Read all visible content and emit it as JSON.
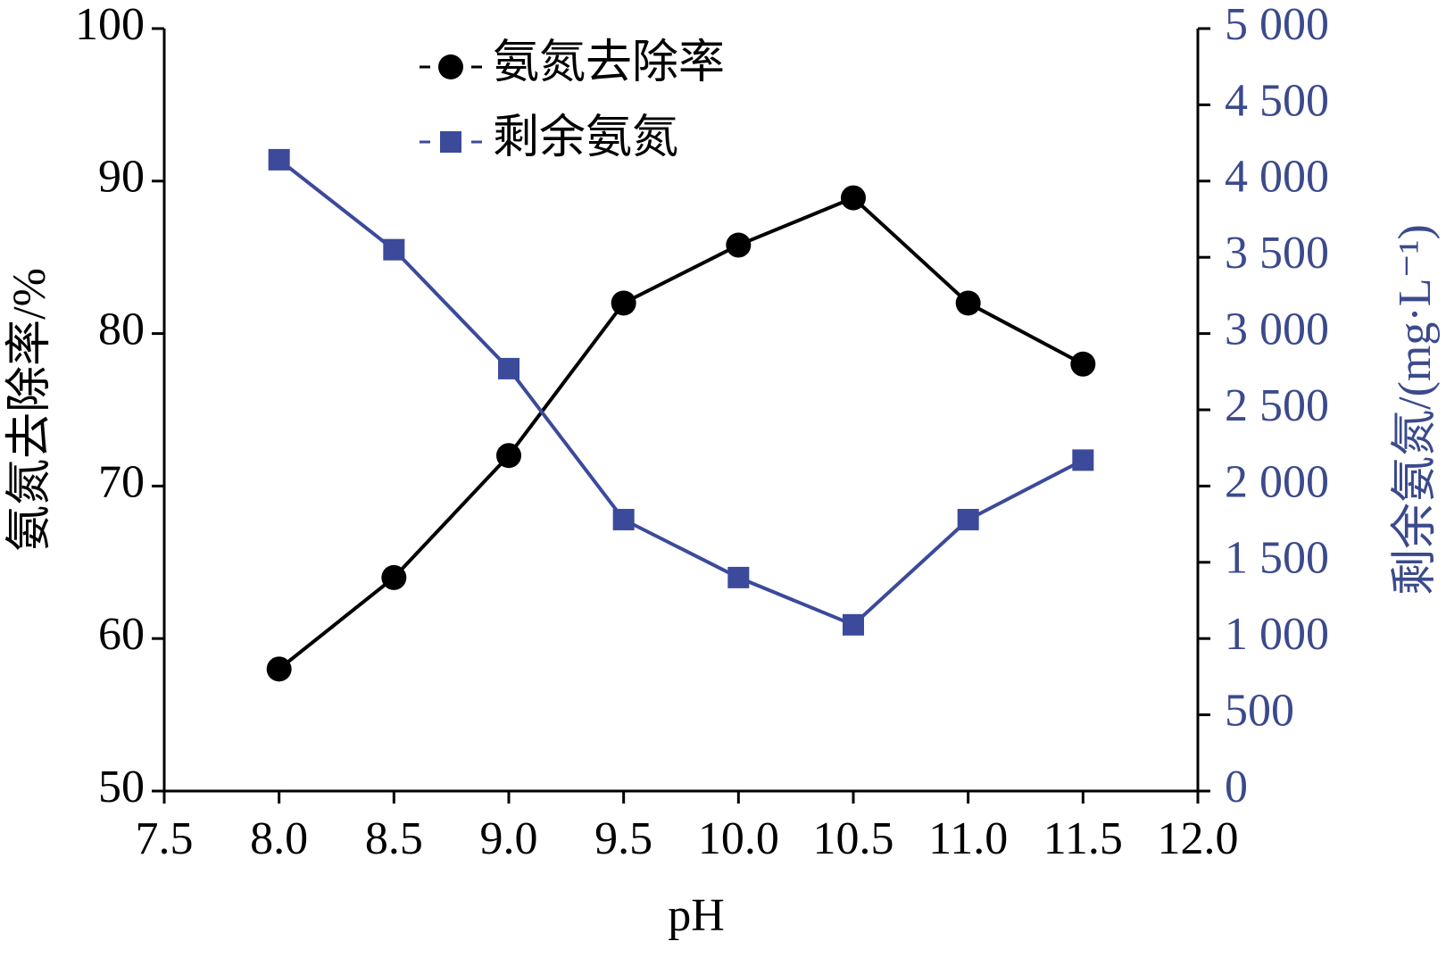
{
  "chart_data": {
    "type": "line",
    "xlabel": "pH",
    "ylabel": "氨氮去除率/%",
    "y2label": "剩余氨氮/(mg·L⁻¹)",
    "x": [
      8.0,
      8.5,
      9.0,
      9.5,
      10.0,
      10.5,
      11.0,
      11.5
    ],
    "series": [
      {
        "name": "氨氮去除率",
        "color": "#000000",
        "marker": "circle",
        "axis": "y",
        "values": [
          58,
          64,
          72,
          82,
          85.8,
          88.9,
          82,
          78
        ]
      },
      {
        "name": "剩余氨氮",
        "color": "#3b4a9a",
        "marker": "square",
        "axis": "y2",
        "values": [
          4140,
          3550,
          2770,
          1780,
          1400,
          1090,
          1780,
          2170
        ]
      }
    ],
    "xlim": [
      7.5,
      12.0
    ],
    "xticks": [
      7.5,
      {
        "value": 8,
        "label": "8.0"
      },
      8.5,
      {
        "value": 9,
        "label": "9.0"
      },
      9.5,
      {
        "value": 10,
        "label": "10.0"
      },
      10.5,
      {
        "value": 11,
        "label": "11.0"
      },
      11.5,
      {
        "value": 12,
        "label": "12.0"
      }
    ],
    "ylim": [
      50,
      100
    ],
    "yticks": [
      50,
      60,
      70,
      80,
      90,
      100
    ],
    "y2lim": [
      0,
      5000
    ],
    "y2ticks": [
      0,
      500,
      {
        "value": 1000,
        "label": "1 000"
      },
      {
        "value": 1500,
        "label": "1 500"
      },
      {
        "value": 2000,
        "label": "2 000"
      },
      {
        "value": 2500,
        "label": "2 500"
      },
      {
        "value": 3000,
        "label": "3 000"
      },
      {
        "value": 3500,
        "label": "3 500"
      },
      {
        "value": 4000,
        "label": "4 000"
      },
      {
        "value": 4500,
        "label": "4 500"
      },
      {
        "value": 5000,
        "label": "5 000"
      }
    ],
    "y2color": "#3b4a8c",
    "legend": "upper center",
    "grid": false
  }
}
